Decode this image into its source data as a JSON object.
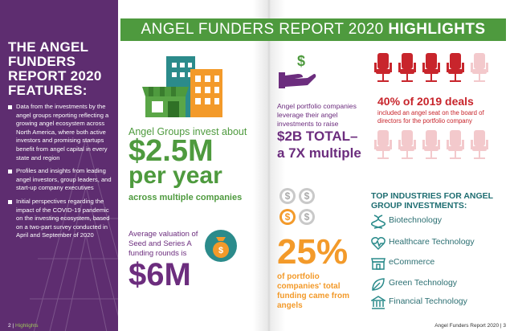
{
  "sidebar": {
    "title": "THE ANGEL FUNDERS REPORT 2020 FEATURES:",
    "bullets": [
      "Data from the investments by the angel groups reporting reflecting a growing angel ecosystem across North America, where both active investors and promising startups benefit from angel capital in every state and region",
      "Profiles and insights from leading angel investors, group leaders, and start-up company executives",
      "Initial perspectives regarding the impact of the COVID-19 pandemic on the investing ecosystem, based on a two-part survey conducted in April and September of 2020"
    ],
    "footer_page": "2",
    "footer_label": "Highlights"
  },
  "banner": {
    "title_main": "ANGEL FUNDERS REPORT 2020 ",
    "title_bold": "HIGHLIGHTS"
  },
  "invest": {
    "lead": "Angel Groups invest about",
    "amount": "$2.5M",
    "period": "per year",
    "sub": "across multiple companies"
  },
  "valuation": {
    "lead": "Average valuation of Seed and Series A funding rounds is",
    "amount": "$6M"
  },
  "leverage": {
    "lead": "Angel portfolio companies leverage their angel investments to raise",
    "big1": "$2B TOTAL–",
    "big2": "a 7X multiple"
  },
  "deals": {
    "stat": "40% of 2019 deals",
    "desc": "included an angel seat on the board of directors for the portfolio company",
    "chairs_highlighted": 4,
    "chairs_total": 10
  },
  "portfolio": {
    "stat": "25%",
    "desc": "of portfolio companies' total funding came from angels"
  },
  "industries": {
    "title": "TOP INDUSTRIES FOR ANGEL GROUP INVESTMENTS:",
    "items": [
      {
        "label": "Biotechnology",
        "icon": "dna-icon"
      },
      {
        "label": "Healthcare Technology",
        "icon": "heart-pulse-icon"
      },
      {
        "label": "eCommerce",
        "icon": "storefront-icon"
      },
      {
        "label": "Green Technology",
        "icon": "leaf-icon"
      },
      {
        "label": "Financial Technology",
        "icon": "bank-icon"
      }
    ]
  },
  "footer_right": "Angel Funders Report 2020",
  "footer_right_page": "3",
  "colors": {
    "purple": "#5e2d70",
    "green": "#4e9a3e",
    "orange": "#f39a2a",
    "red": "#c8252c",
    "pink": "#f3c9cc"
  }
}
